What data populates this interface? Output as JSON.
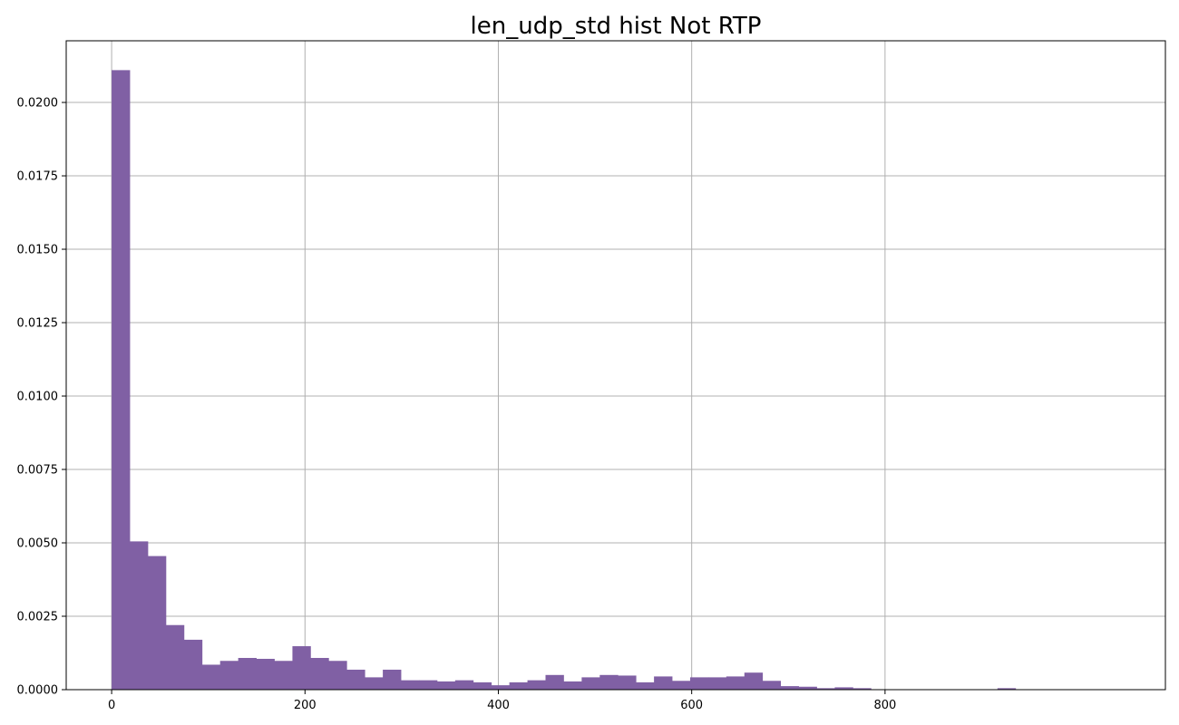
{
  "chart_data": {
    "type": "bar",
    "title": "len_udp_std hist Not RTP",
    "xlabel": "",
    "ylabel": "",
    "xlim": [
      -47,
      1090
    ],
    "ylim": [
      0,
      0.0221
    ],
    "grid": true,
    "bar_color": "#8060a4",
    "x_ticks": [
      0,
      200,
      400,
      600,
      800
    ],
    "x_tick_labels": [
      "0",
      "200",
      "400",
      "600",
      "800"
    ],
    "y_ticks": [
      0,
      0.0025,
      0.005,
      0.0075,
      0.01,
      0.0125,
      0.015,
      0.0175,
      0.02
    ],
    "y_tick_labels": [
      "0.0000",
      "0.0025",
      "0.0050",
      "0.0075",
      "0.0100",
      "0.0125",
      "0.0150",
      "0.0175",
      "0.0200"
    ],
    "bin_start": 0,
    "bin_width": 18.7,
    "values": [
      0.0211,
      0.00505,
      0.00455,
      0.0022,
      0.0017,
      0.00085,
      0.00098,
      0.00108,
      0.00105,
      0.00098,
      0.00148,
      0.00108,
      0.00098,
      0.00068,
      0.00042,
      0.00068,
      0.00032,
      0.00032,
      0.00028,
      0.00032,
      0.00025,
      0.00015,
      0.00025,
      0.00032,
      0.0005,
      0.00028,
      0.00042,
      0.0005,
      0.00048,
      0.00025,
      0.00045,
      0.0003,
      0.00042,
      0.00042,
      0.00045,
      0.00058,
      0.0003,
      0.00012,
      0.0001,
      5e-05,
      8e-05,
      5e-05,
      0,
      0,
      0,
      0,
      0,
      0,
      0,
      5e-05
    ]
  }
}
